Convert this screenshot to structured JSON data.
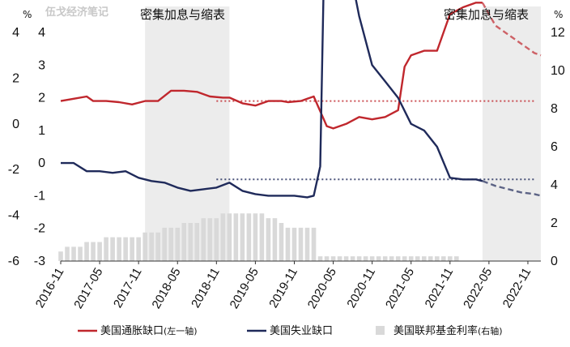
{
  "watermark": "伍戈经济笔记",
  "chart_data": {
    "type": "line",
    "band_label": "密集加息与缩表",
    "bands": [
      {
        "start": "2017-12",
        "end": "2019-01"
      },
      {
        "start": "2022-04",
        "end": "2023-01"
      }
    ],
    "x_range": [
      "2016-11",
      "2023-01"
    ],
    "x_ticks": [
      "2016-11",
      "2017-05",
      "2017-11",
      "2018-05",
      "2018-11",
      "2019-05",
      "2019-11",
      "2020-05",
      "2020-11",
      "2021-05",
      "2021-11",
      "2022-05",
      "2022-11"
    ],
    "left_axis_1": {
      "unit": "%",
      "ticks": [
        "4",
        "2",
        "0",
        "-2",
        "-4",
        "-6"
      ],
      "range": [
        -6,
        4
      ]
    },
    "left_axis_2": {
      "ticks": [
        "4",
        "3",
        "2",
        "1",
        "0",
        "-1",
        "-2",
        "-3"
      ],
      "range": [
        -3,
        4
      ]
    },
    "right_axis": {
      "unit": "%",
      "ticks": [
        "12",
        "10",
        "8",
        "6",
        "4",
        "2",
        "0"
      ],
      "range": [
        0,
        12
      ]
    },
    "series": [
      {
        "name": "美国通胀缺口",
        "legend_suffix": "(左一轴)",
        "color": "#c0272d",
        "axis": "left_1",
        "values": [
          [
            "2016-11",
            1.0
          ],
          [
            "2017-01",
            1.1
          ],
          [
            "2017-03",
            1.2
          ],
          [
            "2017-04",
            1.0
          ],
          [
            "2017-06",
            1.0
          ],
          [
            "2017-08",
            0.95
          ],
          [
            "2017-10",
            0.85
          ],
          [
            "2017-12",
            1.0
          ],
          [
            "2018-02",
            1.0
          ],
          [
            "2018-04",
            1.45
          ],
          [
            "2018-06",
            1.45
          ],
          [
            "2018-08",
            1.4
          ],
          [
            "2018-10",
            1.2
          ],
          [
            "2018-12",
            1.15
          ],
          [
            "2019-01",
            1.15
          ],
          [
            "2019-03",
            0.9
          ],
          [
            "2019-05",
            0.8
          ],
          [
            "2019-07",
            1.0
          ],
          [
            "2019-09",
            1.0
          ],
          [
            "2019-10",
            0.95
          ],
          [
            "2019-12",
            1.0
          ],
          [
            "2020-01",
            1.1
          ],
          [
            "2020-02",
            1.2
          ],
          [
            "2020-04",
            -0.1
          ],
          [
            "2020-05",
            -0.2
          ],
          [
            "2020-07",
            0.0
          ],
          [
            "2020-09",
            0.3
          ],
          [
            "2020-11",
            0.2
          ],
          [
            "2021-01",
            0.3
          ],
          [
            "2021-03",
            0.6
          ],
          [
            "2021-04",
            2.5
          ],
          [
            "2021-05",
            3.0
          ],
          [
            "2021-07",
            3.2
          ],
          [
            "2021-09",
            3.2
          ],
          [
            "2021-11",
            4.8
          ],
          [
            "2022-01",
            5.1
          ],
          [
            "2022-03",
            5.3
          ],
          [
            "2022-04",
            5.3
          ],
          [
            "2022-06",
            4.3
          ],
          [
            "2022-08",
            3.9
          ],
          [
            "2022-10",
            3.5
          ],
          [
            "2022-12",
            3.1
          ],
          [
            "2023-01",
            3.0
          ]
        ],
        "reference_level": 1.0
      },
      {
        "name": "美国失业缺口",
        "color": "#1f2a5a",
        "axis": "left_2",
        "values": [
          [
            "2016-11",
            0.0
          ],
          [
            "2017-01",
            0.0
          ],
          [
            "2017-03",
            -0.25
          ],
          [
            "2017-05",
            -0.25
          ],
          [
            "2017-07",
            -0.3
          ],
          [
            "2017-09",
            -0.25
          ],
          [
            "2017-11",
            -0.45
          ],
          [
            "2018-01",
            -0.55
          ],
          [
            "2018-03",
            -0.6
          ],
          [
            "2018-05",
            -0.75
          ],
          [
            "2018-07",
            -0.85
          ],
          [
            "2018-09",
            -0.8
          ],
          [
            "2018-11",
            -0.75
          ],
          [
            "2019-01",
            -0.6
          ],
          [
            "2019-03",
            -0.85
          ],
          [
            "2019-05",
            -0.95
          ],
          [
            "2019-07",
            -1.0
          ],
          [
            "2019-09",
            -1.0
          ],
          [
            "2019-11",
            -1.0
          ],
          [
            "2020-01",
            -1.05
          ],
          [
            "2020-02",
            -1.0
          ],
          [
            "2020-03",
            -0.1
          ],
          [
            "2020-04",
            10.5
          ],
          [
            "2020-05",
            9.0
          ],
          [
            "2020-07",
            6.5
          ],
          [
            "2020-09",
            4.5
          ],
          [
            "2020-11",
            3.0
          ],
          [
            "2021-01",
            2.5
          ],
          [
            "2021-03",
            2.0
          ],
          [
            "2021-05",
            1.2
          ],
          [
            "2021-07",
            1.0
          ],
          [
            "2021-09",
            0.5
          ],
          [
            "2021-11",
            -0.45
          ],
          [
            "2022-01",
            -0.5
          ],
          [
            "2022-03",
            -0.5
          ],
          [
            "2022-04",
            -0.55
          ],
          [
            "2022-06",
            -0.7
          ],
          [
            "2022-08",
            -0.8
          ],
          [
            "2022-10",
            -0.9
          ],
          [
            "2022-12",
            -0.95
          ],
          [
            "2023-01",
            -1.0
          ]
        ],
        "reference_level": -0.5
      },
      {
        "name": "美国联邦基金利率",
        "legend_suffix": "(右轴)",
        "color": "#d9d9d9",
        "type": "bar",
        "axis": "right",
        "values": [
          [
            "2016-11",
            0.5
          ],
          [
            "2016-12",
            0.75
          ],
          [
            "2017-01",
            0.75
          ],
          [
            "2017-02",
            0.75
          ],
          [
            "2017-03",
            1.0
          ],
          [
            "2017-04",
            1.0
          ],
          [
            "2017-05",
            1.0
          ],
          [
            "2017-06",
            1.25
          ],
          [
            "2017-07",
            1.25
          ],
          [
            "2017-08",
            1.25
          ],
          [
            "2017-09",
            1.25
          ],
          [
            "2017-10",
            1.25
          ],
          [
            "2017-11",
            1.25
          ],
          [
            "2017-12",
            1.5
          ],
          [
            "2018-01",
            1.5
          ],
          [
            "2018-02",
            1.5
          ],
          [
            "2018-03",
            1.75
          ],
          [
            "2018-04",
            1.75
          ],
          [
            "2018-05",
            1.75
          ],
          [
            "2018-06",
            2.0
          ],
          [
            "2018-07",
            2.0
          ],
          [
            "2018-08",
            2.0
          ],
          [
            "2018-09",
            2.25
          ],
          [
            "2018-10",
            2.25
          ],
          [
            "2018-11",
            2.25
          ],
          [
            "2018-12",
            2.5
          ],
          [
            "2019-01",
            2.5
          ],
          [
            "2019-02",
            2.5
          ],
          [
            "2019-03",
            2.5
          ],
          [
            "2019-04",
            2.5
          ],
          [
            "2019-05",
            2.5
          ],
          [
            "2019-06",
            2.5
          ],
          [
            "2019-07",
            2.25
          ],
          [
            "2019-08",
            2.25
          ],
          [
            "2019-09",
            2.0
          ],
          [
            "2019-10",
            1.75
          ],
          [
            "2019-11",
            1.75
          ],
          [
            "2019-12",
            1.75
          ],
          [
            "2020-01",
            1.75
          ],
          [
            "2020-02",
            1.75
          ],
          [
            "2020-03",
            0.25
          ],
          [
            "2020-04",
            0.25
          ],
          [
            "2020-05",
            0.25
          ],
          [
            "2020-06",
            0.25
          ],
          [
            "2020-07",
            0.25
          ],
          [
            "2020-08",
            0.25
          ],
          [
            "2020-09",
            0.25
          ],
          [
            "2020-10",
            0.25
          ],
          [
            "2020-11",
            0.25
          ],
          [
            "2020-12",
            0.25
          ],
          [
            "2021-01",
            0.25
          ],
          [
            "2021-02",
            0.25
          ],
          [
            "2021-03",
            0.25
          ],
          [
            "2021-04",
            0.25
          ],
          [
            "2021-05",
            0.25
          ],
          [
            "2021-06",
            0.25
          ],
          [
            "2021-07",
            0.25
          ],
          [
            "2021-08",
            0.25
          ],
          [
            "2021-09",
            0.25
          ],
          [
            "2021-10",
            0.25
          ],
          [
            "2021-11",
            0.25
          ],
          [
            "2021-12",
            0.25
          ]
        ]
      }
    ],
    "legend": [
      {
        "label": "美国通胀缺口",
        "suffix": "(左一轴)",
        "color": "#c0272d",
        "shape": "line"
      },
      {
        "label": "美国失业缺口",
        "suffix": "",
        "color": "#1f2a5a",
        "shape": "line"
      },
      {
        "label": "美国联邦基金利率",
        "suffix": "(右轴)",
        "color": "#d9d9d9",
        "shape": "square"
      }
    ]
  }
}
